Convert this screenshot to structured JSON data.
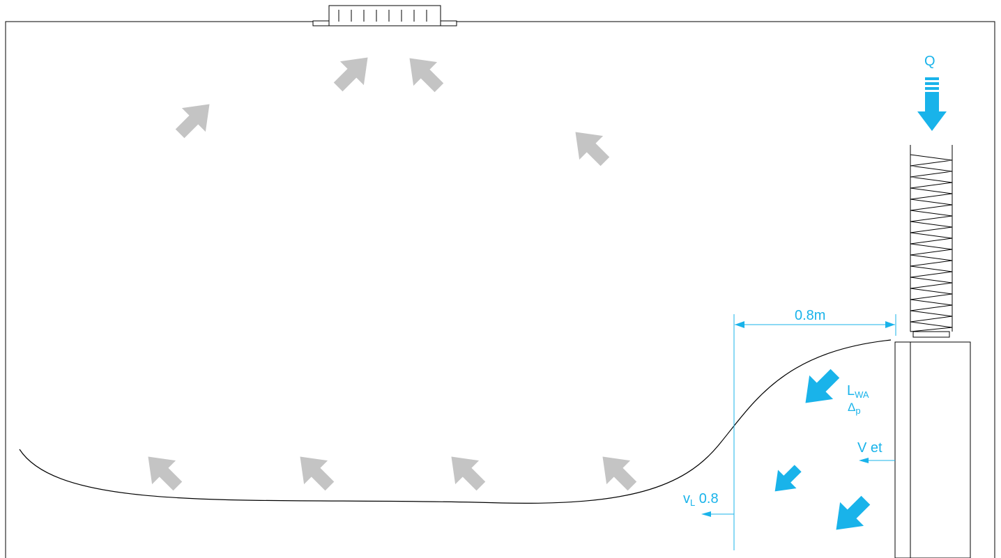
{
  "labels": {
    "flow_q": "Q",
    "distance": "0.8m",
    "sound_power_main": "L",
    "sound_power_sub": "WA",
    "pressure_drop_main": "Δ",
    "pressure_drop_sub": "p",
    "outlet_velocity": "V et",
    "velocity_main": "v",
    "velocity_sub": "L",
    "velocity_value": "0.8"
  },
  "colors": {
    "accent": "#19b3ea",
    "room_arrow": "#c4c4c4",
    "line": "#000000"
  },
  "icons": {
    "supply_arrow": "arrow-down-icon",
    "room_arrow": "arrow-icon"
  }
}
